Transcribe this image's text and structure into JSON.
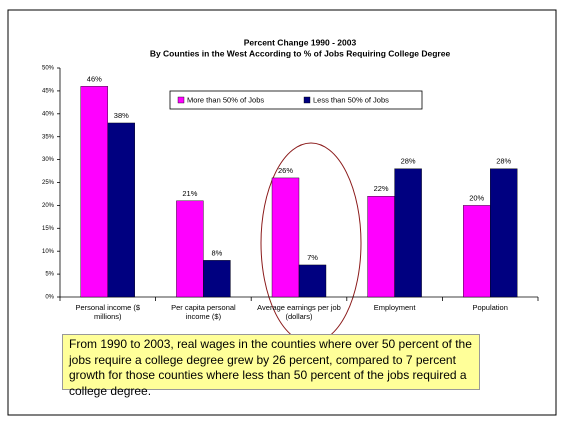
{
  "chart_data": {
    "type": "bar",
    "title": "Percent Change 1990 - 2003",
    "subtitle": "By Counties in the West According to % of Jobs Requiring College Degree",
    "categories": [
      "Personal income ($ millions)",
      "Per capita personal income ($)",
      "Average earnings per job (dollars)",
      "Employment",
      "Population"
    ],
    "series": [
      {
        "name": "More than 50% of Jobs",
        "color": "#ff00ff",
        "values": [
          46,
          21,
          26,
          22,
          20
        ],
        "value_labels": [
          "46%",
          "21%",
          "26%",
          "22%",
          "20%"
        ]
      },
      {
        "name": "Less than 50% of Jobs",
        "color": "#000080",
        "values": [
          38,
          8,
          7,
          28,
          28
        ],
        "value_labels": [
          "38%",
          "8%",
          "7%",
          "28%",
          "28%"
        ]
      }
    ],
    "ylim": [
      0,
      50
    ],
    "yticks": [
      {
        "value": 0,
        "label": "0%"
      },
      {
        "value": 5,
        "label": "5%"
      },
      {
        "value": 10,
        "label": "10%"
      },
      {
        "value": 15,
        "label": "15%"
      },
      {
        "value": 20,
        "label": "20%"
      },
      {
        "value": 25,
        "label": "25%"
      },
      {
        "value": 30,
        "label": "30%"
      },
      {
        "value": 35,
        "label": "35%"
      },
      {
        "value": 40,
        "label": "40%"
      },
      {
        "value": 45,
        "label": "45%"
      },
      {
        "value": 50,
        "label": "50%"
      }
    ],
    "grid": false,
    "legend": "top",
    "annotation": "From 1990 to 2003, real wages in the counties where over 50 percent of the jobs require a college degree grew by 26 percent, compared to 7 percent growth for those counties where less than 50 percent of the jobs required a college degree."
  }
}
